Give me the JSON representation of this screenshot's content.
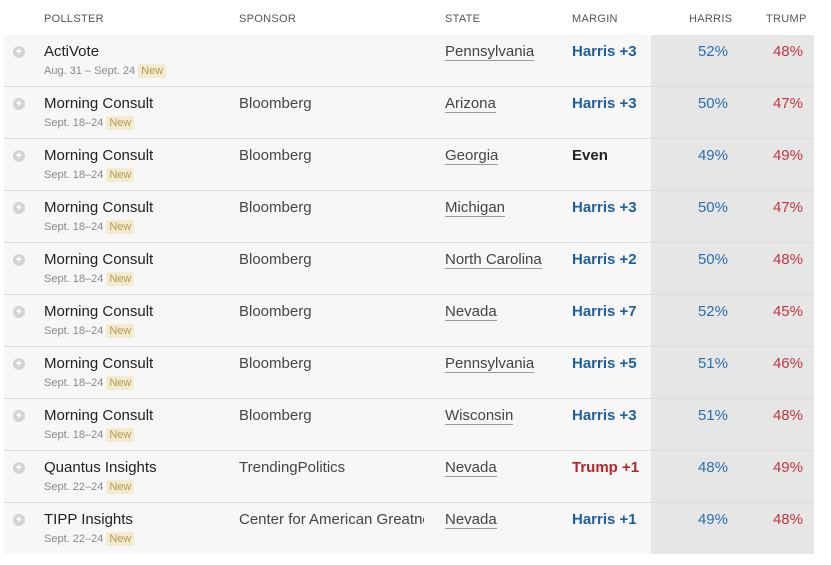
{
  "columns": {
    "pollster": "POLLSTER",
    "sponsor": "SPONSOR",
    "state": "STATE",
    "margin": "MARGIN",
    "harris": "HARRIS",
    "trump": "TRUMP"
  },
  "badge_label": "New",
  "colors": {
    "dem": "#1f5f9e",
    "rep": "#b5262c",
    "new_badge_bg": "#f3ebcf",
    "shade": "#e6e6e6"
  },
  "rows": [
    {
      "pollster": "ActiVote",
      "dates": "Aug. 31 – Sept. 24",
      "sponsor": "",
      "state": "Pennsylvania",
      "margin": "Harris +3",
      "lean": "dem",
      "harris": "52%",
      "trump": "48%"
    },
    {
      "pollster": "Morning Consult",
      "dates": "Sept. 18–24",
      "sponsor": "Bloomberg",
      "state": "Arizona",
      "margin": "Harris +3",
      "lean": "dem",
      "harris": "50%",
      "trump": "47%"
    },
    {
      "pollster": "Morning Consult",
      "dates": "Sept. 18–24",
      "sponsor": "Bloomberg",
      "state": "Georgia",
      "margin": "Even",
      "lean": "even",
      "harris": "49%",
      "trump": "49%"
    },
    {
      "pollster": "Morning Consult",
      "dates": "Sept. 18–24",
      "sponsor": "Bloomberg",
      "state": "Michigan",
      "margin": "Harris +3",
      "lean": "dem",
      "harris": "50%",
      "trump": "47%"
    },
    {
      "pollster": "Morning Consult",
      "dates": "Sept. 18–24",
      "sponsor": "Bloomberg",
      "state": "North Carolina",
      "margin": "Harris +2",
      "lean": "dem",
      "harris": "50%",
      "trump": "48%"
    },
    {
      "pollster": "Morning Consult",
      "dates": "Sept. 18–24",
      "sponsor": "Bloomberg",
      "state": "Nevada",
      "margin": "Harris +7",
      "lean": "dem",
      "harris": "52%",
      "trump": "45%"
    },
    {
      "pollster": "Morning Consult",
      "dates": "Sept. 18–24",
      "sponsor": "Bloomberg",
      "state": "Pennsylvania",
      "margin": "Harris +5",
      "lean": "dem",
      "harris": "51%",
      "trump": "46%"
    },
    {
      "pollster": "Morning Consult",
      "dates": "Sept. 18–24",
      "sponsor": "Bloomberg",
      "state": "Wisconsin",
      "margin": "Harris +3",
      "lean": "dem",
      "harris": "51%",
      "trump": "48%"
    },
    {
      "pollster": "Quantus Insights",
      "dates": "Sept. 22–24",
      "sponsor": "TrendingPolitics",
      "state": "Nevada",
      "margin": "Trump +1",
      "lean": "rep",
      "harris": "48%",
      "trump": "49%"
    },
    {
      "pollster": "TIPP Insights",
      "dates": "Sept. 22–24",
      "sponsor": "Center for American Greatness",
      "state": "Nevada",
      "margin": "Harris +1",
      "lean": "dem",
      "harris": "49%",
      "trump": "48%"
    }
  ]
}
